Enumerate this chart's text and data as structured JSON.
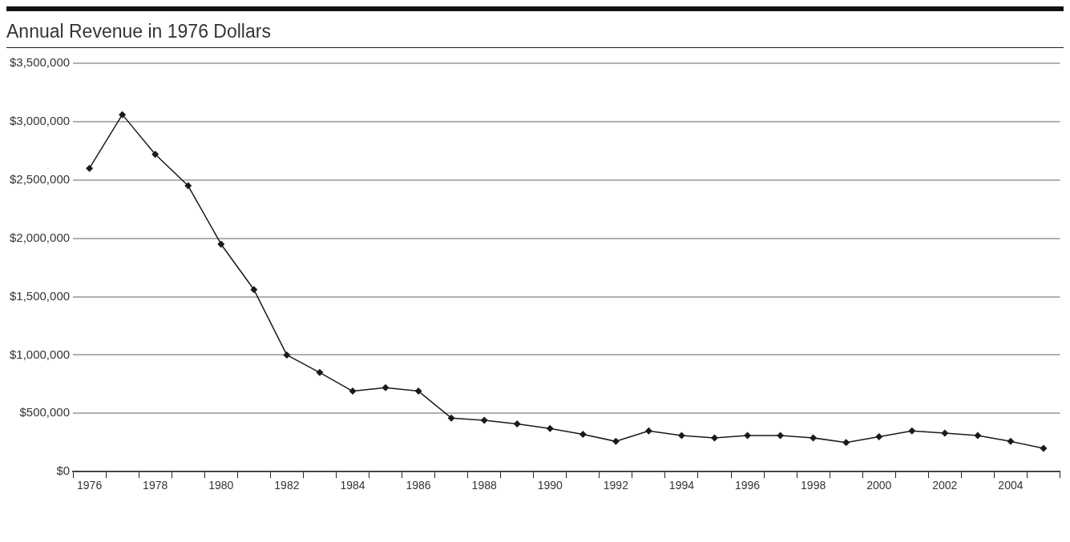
{
  "chart_data": {
    "type": "line",
    "title": "Annual Revenue in 1976 Dollars",
    "categories": [
      "1976",
      null,
      "1978",
      null,
      "1980",
      null,
      "1982",
      null,
      "1984",
      null,
      "1986",
      null,
      "1988",
      null,
      "1990",
      null,
      "1992",
      null,
      "1994",
      null,
      "1996",
      null,
      "1998",
      null,
      "2000",
      null,
      "2002",
      null,
      "2004",
      null
    ],
    "series": [
      {
        "color": "#1a1a1a",
        "values": [
          2600000,
          3060000,
          2720000,
          2450000,
          1950000,
          1560000,
          1000000,
          850000,
          690000,
          720000,
          690000,
          460000,
          440000,
          410000,
          370000,
          320000,
          260000,
          350000,
          310000,
          290000,
          310000,
          310000,
          290000,
          250000,
          300000,
          350000,
          330000,
          310000,
          260000,
          200000
        ]
      }
    ],
    "ylim": [
      0,
      3500000
    ],
    "yticks": [
      {
        "value": 0,
        "label": "$0"
      },
      {
        "value": 500000,
        "label": "$500,000"
      },
      {
        "value": 1000000,
        "label": "$1,000,000"
      },
      {
        "value": 1500000,
        "label": "$1,500,000"
      },
      {
        "value": 2000000,
        "label": "$2,000,000"
      },
      {
        "value": 2500000,
        "label": "$2,500,000"
      },
      {
        "value": 3000000,
        "label": "$3,000,000"
      },
      {
        "value": 3500000,
        "label": "$3,500,000"
      }
    ],
    "grid": "y",
    "marker": "diamond",
    "line_style": "solid",
    "legend": false
  }
}
